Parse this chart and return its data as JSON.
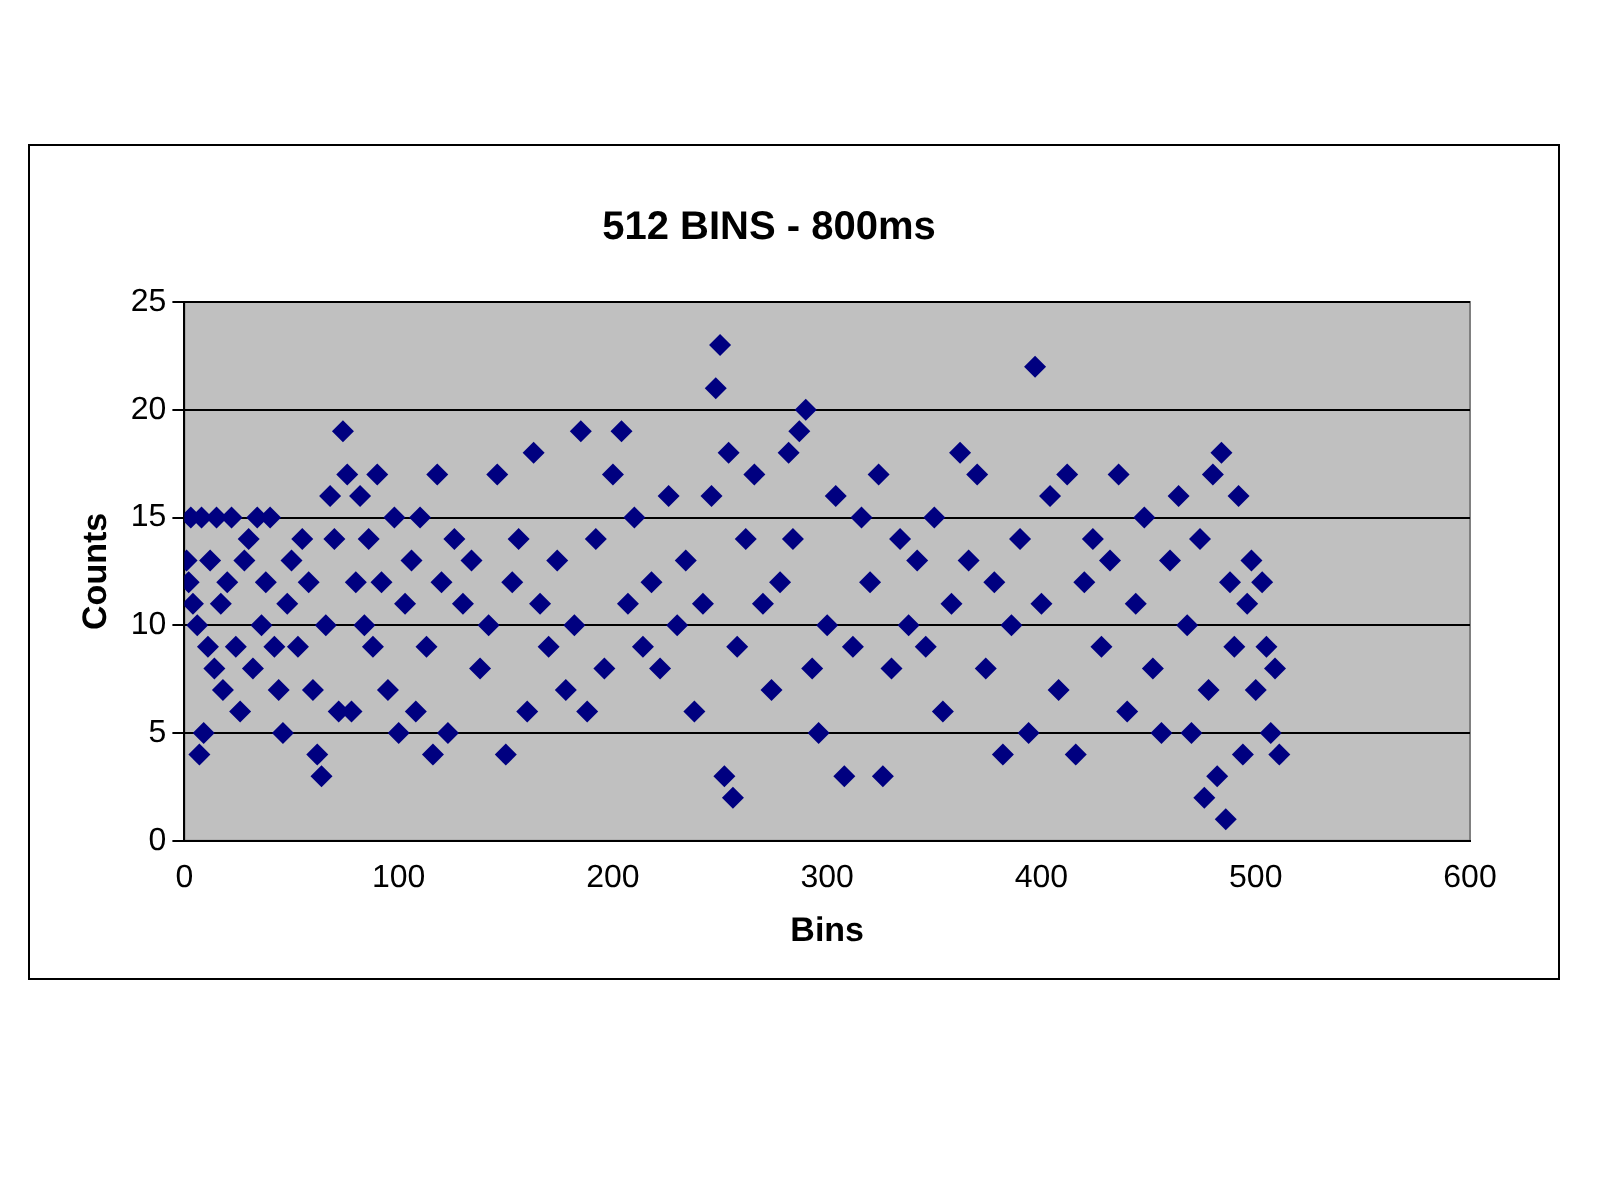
{
  "chart_data": {
    "type": "scatter",
    "title": "512 BINS - 800ms",
    "xlabel": "Bins",
    "ylabel": "Counts",
    "x": [
      1,
      2,
      3,
      4,
      6,
      7,
      8,
      9,
      11,
      12,
      14,
      15,
      17,
      18,
      20,
      22,
      24,
      26,
      28,
      30,
      32,
      34,
      36,
      38,
      40,
      42,
      44,
      46,
      48,
      50,
      53,
      55,
      58,
      60,
      62,
      64,
      66,
      68,
      70,
      72,
      74,
      76,
      78,
      80,
      82,
      84,
      86,
      88,
      90,
      92,
      95,
      98,
      100,
      103,
      106,
      108,
      110,
      113,
      116,
      118,
      120,
      123,
      126,
      130,
      134,
      138,
      142,
      146,
      150,
      153,
      156,
      160,
      163,
      166,
      170,
      174,
      178,
      182,
      185,
      188,
      192,
      196,
      200,
      204,
      207,
      210,
      214,
      218,
      222,
      226,
      230,
      234,
      238,
      242,
      246,
      248,
      250,
      252,
      254,
      256,
      258,
      262,
      266,
      270,
      274,
      278,
      282,
      284,
      287,
      290,
      293,
      296,
      300,
      304,
      308,
      312,
      316,
      320,
      324,
      326,
      330,
      334,
      338,
      342,
      346,
      350,
      354,
      358,
      362,
      366,
      370,
      374,
      378,
      382,
      386,
      390,
      394,
      397,
      400,
      404,
      408,
      412,
      416,
      420,
      424,
      428,
      432,
      436,
      440,
      444,
      448,
      452,
      456,
      460,
      464,
      468,
      470,
      474,
      476,
      478,
      480,
      482,
      484,
      486,
      488,
      490,
      492,
      494,
      496,
      498,
      500,
      503,
      505,
      507,
      509,
      511
    ],
    "values": [
      13,
      12,
      15,
      11,
      10,
      4,
      15,
      5,
      9,
      13,
      8,
      15,
      11,
      7,
      12,
      15,
      9,
      6,
      13,
      14,
      8,
      15,
      10,
      12,
      15,
      9,
      7,
      5,
      11,
      13,
      9,
      14,
      12,
      7,
      4,
      3,
      10,
      16,
      14,
      6,
      19,
      17,
      6,
      12,
      16,
      10,
      14,
      9,
      17,
      12,
      7,
      15,
      5,
      11,
      13,
      6,
      15,
      9,
      4,
      17,
      12,
      5,
      14,
      11,
      13,
      8,
      10,
      17,
      4,
      12,
      14,
      6,
      18,
      11,
      9,
      13,
      7,
      10,
      19,
      6,
      14,
      8,
      17,
      19,
      11,
      15,
      9,
      12,
      8,
      16,
      10,
      13,
      6,
      11,
      16,
      21,
      23,
      3,
      18,
      2,
      9,
      14,
      17,
      11,
      7,
      12,
      18,
      14,
      19,
      20,
      8,
      5,
      10,
      16,
      3,
      9,
      15,
      12,
      17,
      3,
      8,
      14,
      10,
      13,
      9,
      15,
      6,
      11,
      18,
      13,
      17,
      8,
      12,
      4,
      10,
      14,
      5,
      22,
      11,
      16,
      7,
      17,
      4,
      12,
      14,
      9,
      13,
      17,
      6,
      11,
      15,
      8,
      5,
      13,
      16,
      10,
      5,
      14,
      2,
      7,
      17,
      3,
      18,
      1,
      12,
      9,
      16,
      4,
      11,
      13,
      7,
      12,
      9,
      5,
      8,
      4
    ],
    "color": "#000080",
    "marker": "diamond",
    "xlim": [
      0,
      600
    ],
    "xticks": [
      0,
      100,
      200,
      300,
      400,
      500,
      600
    ],
    "ylim": [
      0,
      25
    ],
    "yticks": [
      0,
      5,
      10,
      15,
      20,
      25
    ],
    "grid": "y",
    "legend": false
  }
}
